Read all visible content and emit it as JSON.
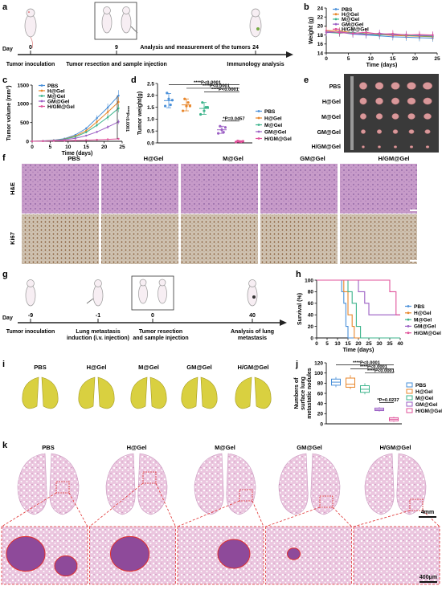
{
  "panels": {
    "a": {
      "letter": "a",
      "day_label": "Day",
      "days": [
        "0",
        "9",
        "24"
      ],
      "events": [
        "Tumor inoculation",
        "Tumor resection and sample injection",
        "Immunology analysis"
      ],
      "top_label": "Analysis and measurement of the tumors"
    },
    "b": {
      "letter": "b"
    },
    "c": {
      "letter": "c"
    },
    "d": {
      "letter": "d"
    },
    "e": {
      "letter": "e",
      "groups": [
        "PBS",
        "H@Gel",
        "M@Gel",
        "GM@Gel",
        "H/GM@Gel"
      ]
    },
    "f": {
      "letter": "f",
      "columns": [
        "PBS",
        "H@Gel",
        "M@Gel",
        "GM@Gel",
        "H/GM@Gel"
      ],
      "rows": [
        "H&E",
        "Ki67"
      ]
    },
    "g": {
      "letter": "g",
      "day_label": "Day",
      "days": [
        "-9",
        "-1",
        "0",
        "40"
      ],
      "events": [
        "Tumor inoculation",
        "Lung metastasis\ninduction (i.v. injection)",
        "Tumor resection\nand sample injection",
        "Analysis of lung\nmetastasis"
      ]
    },
    "h": {
      "letter": "h"
    },
    "i": {
      "letter": "i",
      "groups": [
        "PBS",
        "H@Gel",
        "M@Gel",
        "GM@Gel",
        "H/GM@Gel"
      ]
    },
    "j": {
      "letter": "j"
    },
    "k": {
      "letter": "k",
      "columns": [
        "PBS",
        "H@Gel",
        "M@Gel",
        "GM@Gel",
        "H/GM@Gel"
      ],
      "scale_top": "4mm",
      "scale_bottom": "400μm"
    }
  },
  "colors": {
    "PBS": "#4a90d9",
    "H@Gel": "#e8862a",
    "M@Gel": "#3cb48c",
    "GM@Gel": "#9b5fc4",
    "H/GM@Gel": "#e0529a"
  },
  "chart_data": [
    {
      "panel": "b",
      "type": "line",
      "xlabel": "Time (days)",
      "ylabel": "Weight (g)",
      "xlim": [
        0,
        25
      ],
      "ylim": [
        14,
        24
      ],
      "xticks": [
        0,
        5,
        10,
        15,
        20,
        25
      ],
      "yticks": [
        14,
        16,
        18,
        20,
        22,
        24
      ],
      "x": [
        0,
        3,
        6,
        9,
        12,
        15,
        18,
        21,
        24
      ],
      "series": [
        {
          "name": "PBS",
          "values": [
            18.8,
            18.6,
            18.2,
            18.0,
            17.8,
            17.6,
            17.5,
            17.4,
            17.3
          ]
        },
        {
          "name": "H@Gel",
          "values": [
            19.0,
            18.9,
            18.5,
            18.3,
            18.1,
            17.9,
            17.8,
            17.7,
            17.6
          ]
        },
        {
          "name": "M@Gel",
          "values": [
            18.6,
            18.4,
            18.6,
            18.2,
            18.0,
            18.2,
            17.9,
            17.8,
            17.7
          ]
        },
        {
          "name": "GM@Gel",
          "values": [
            18.5,
            18.7,
            18.3,
            18.1,
            18.4,
            18.0,
            18.1,
            17.9,
            17.9
          ]
        },
        {
          "name": "H/GM@Gel",
          "values": [
            18.9,
            18.5,
            18.4,
            18.6,
            18.2,
            18.3,
            18.0,
            18.1,
            18.0
          ]
        }
      ]
    },
    {
      "panel": "c",
      "type": "line",
      "xlabel": "Time (days)",
      "ylabel": "Tumor volume (mm³)",
      "xlim": [
        0,
        25
      ],
      "ylim": [
        0,
        1500
      ],
      "xticks": [
        0,
        5,
        10,
        15,
        20,
        25
      ],
      "yticks": [
        0,
        500,
        1000,
        1500
      ],
      "x": [
        0,
        3,
        6,
        9,
        12,
        15,
        18,
        21,
        24
      ],
      "annotation": "****P<0.0001",
      "series": [
        {
          "name": "PBS",
          "values": [
            0,
            10,
            30,
            70,
            170,
            340,
            620,
            900,
            1220
          ]
        },
        {
          "name": "H@Gel",
          "values": [
            0,
            8,
            25,
            60,
            140,
            280,
            520,
            780,
            1050
          ]
        },
        {
          "name": "M@Gel",
          "values": [
            0,
            8,
            22,
            55,
            120,
            240,
            430,
            640,
            880
          ]
        },
        {
          "name": "GM@Gel",
          "values": [
            0,
            6,
            18,
            40,
            80,
            150,
            250,
            380,
            520
          ]
        },
        {
          "name": "H/GM@Gel",
          "values": [
            0,
            4,
            10,
            15,
            22,
            30,
            40,
            52,
            65
          ]
        }
      ]
    },
    {
      "panel": "d",
      "type": "scatter",
      "ylabel": "Tumor weight(g)",
      "ylim": [
        0,
        2.5
      ],
      "yticks": [
        0,
        0.5,
        1.0,
        1.5,
        2.0,
        2.5
      ],
      "categories": [
        "PBS",
        "H@Gel",
        "M@Gel",
        "GM@Gel",
        "H/GM@Gel"
      ],
      "means": [
        1.78,
        1.6,
        1.45,
        0.55,
        0.06
      ],
      "errors": [
        0.3,
        0.25,
        0.25,
        0.15,
        0.03
      ],
      "points": [
        [
          1.55,
          2.1,
          1.85,
          1.6,
          1.8
        ],
        [
          1.35,
          1.85,
          1.55,
          1.7,
          1.55
        ],
        [
          1.2,
          1.7,
          1.35,
          1.5,
          1.5
        ],
        [
          0.4,
          0.7,
          0.55,
          0.45,
          0.65
        ],
        [
          0.04,
          0.08,
          0.06,
          0.05,
          0.07
        ]
      ],
      "significance": [
        "****P<0.0001",
        "****P<0.0001",
        "****P<0.0001",
        "*P=0.0457"
      ],
      "legend": "right"
    },
    {
      "panel": "h",
      "type": "line",
      "xlabel": "Time (days)",
      "ylabel": "Survival (%)",
      "xlim": [
        0,
        40
      ],
      "ylim": [
        0,
        100
      ],
      "xticks": [
        0,
        5,
        10,
        15,
        20,
        25,
        30,
        35,
        40
      ],
      "yticks": [
        0,
        20,
        40,
        60,
        80,
        100
      ],
      "series": [
        {
          "name": "PBS",
          "steps": [
            [
              0,
              100
            ],
            [
              12,
              100
            ],
            [
              12,
              80
            ],
            [
              13,
              80
            ],
            [
              13,
              60
            ],
            [
              14,
              60
            ],
            [
              14,
              20
            ],
            [
              15,
              20
            ],
            [
              15,
              0
            ],
            [
              40,
              0
            ]
          ]
        },
        {
          "name": "H@Gel",
          "steps": [
            [
              0,
              100
            ],
            [
              13,
              100
            ],
            [
              13,
              80
            ],
            [
              15,
              80
            ],
            [
              15,
              40
            ],
            [
              17,
              40
            ],
            [
              17,
              20
            ],
            [
              18,
              20
            ],
            [
              18,
              0
            ],
            [
              40,
              0
            ]
          ]
        },
        {
          "name": "M@Gel",
          "steps": [
            [
              0,
              100
            ],
            [
              15,
              100
            ],
            [
              15,
              80
            ],
            [
              17,
              80
            ],
            [
              17,
              60
            ],
            [
              19,
              60
            ],
            [
              19,
              20
            ],
            [
              21,
              20
            ],
            [
              21,
              0
            ],
            [
              40,
              0
            ]
          ]
        },
        {
          "name": "GM@Gel",
          "steps": [
            [
              0,
              100
            ],
            [
              20,
              100
            ],
            [
              20,
              80
            ],
            [
              23,
              80
            ],
            [
              23,
              60
            ],
            [
              25,
              60
            ],
            [
              25,
              40
            ],
            [
              40,
              40
            ]
          ]
        },
        {
          "name": "H/GM@Gel",
          "steps": [
            [
              0,
              100
            ],
            [
              35,
              100
            ],
            [
              35,
              80
            ],
            [
              38,
              80
            ],
            [
              38,
              40
            ],
            [
              40,
              40
            ]
          ]
        }
      ],
      "legend": "right"
    },
    {
      "panel": "j",
      "type": "box",
      "ylabel": "Numbers of surface lung metastatic nodules",
      "ylim": [
        0,
        120
      ],
      "yticks": [
        0,
        20,
        40,
        60,
        80,
        100,
        120
      ],
      "categories": [
        "PBS",
        "H@Gel",
        "M@Gel",
        "GM@Gel",
        "H/GM@Gel"
      ],
      "boxes": [
        {
          "min": 72,
          "q1": 76,
          "median": 82,
          "q3": 88,
          "max": 92
        },
        {
          "min": 68,
          "q1": 72,
          "median": 78,
          "q3": 90,
          "max": 96
        },
        {
          "min": 58,
          "q1": 62,
          "median": 68,
          "q3": 75,
          "max": 80
        },
        {
          "min": 24,
          "q1": 26,
          "median": 28,
          "q3": 31,
          "max": 33
        },
        {
          "min": 4,
          "q1": 6,
          "median": 9,
          "q3": 12,
          "max": 14
        }
      ],
      "significance": [
        "****P<0.0001",
        "****P<0.0001",
        "****P<0.0001",
        "*P=0.0237"
      ],
      "legend": "right"
    }
  ]
}
